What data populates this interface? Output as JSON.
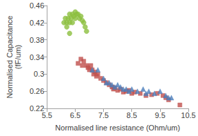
{
  "chart_data": {
    "type": "scatter",
    "x_label": "Normalised line resistance (Ohm/um)",
    "y_label": "Normalised Capacitance (fF/um)",
    "xlim": [
      5.5,
      10.5
    ],
    "xticks": [
      5.5,
      6.5,
      7.5,
      8.5,
      9.5,
      10.5
    ],
    "ylim": [
      0.22,
      0.46
    ],
    "yticks": [
      0.22,
      0.26,
      0.3,
      0.34,
      0.38,
      0.42,
      0.46
    ],
    "grid": false,
    "series": [
      {
        "color": "#8cbf3f",
        "marker": "circle",
        "x": [
          6.1,
          6.15,
          6.2,
          6.25,
          6.3,
          6.3,
          6.35,
          6.4,
          6.45,
          6.5,
          6.5,
          6.55,
          6.6,
          6.65,
          6.7,
          6.75,
          6.8,
          6.85,
          6.9,
          6.3,
          6.2,
          6.4
        ],
        "values": [
          0.42,
          0.43,
          0.42,
          0.43,
          0.44,
          0.42,
          0.43,
          0.44,
          0.435,
          0.445,
          0.43,
          0.44,
          0.44,
          0.43,
          0.435,
          0.425,
          0.42,
          0.41,
          0.4,
          0.395,
          0.41,
          0.42
        ]
      },
      {
        "color": "#c0504d",
        "marker": "square",
        "x": [
          6.6,
          6.7,
          6.75,
          6.8,
          6.9,
          6.95,
          7.0,
          7.05,
          7.1,
          7.15,
          7.2,
          7.25,
          7.3,
          7.4,
          7.5,
          7.6,
          7.7,
          7.8,
          7.85,
          7.9,
          8.0,
          8.1,
          8.2,
          8.3,
          8.4,
          8.5,
          8.6,
          8.8,
          9.0,
          9.2,
          9.4,
          9.6,
          9.7,
          9.8,
          10.2
        ],
        "values": [
          0.325,
          0.335,
          0.32,
          0.33,
          0.32,
          0.315,
          0.31,
          0.32,
          0.31,
          0.3,
          0.305,
          0.295,
          0.3,
          0.29,
          0.285,
          0.28,
          0.275,
          0.27,
          0.265,
          0.268,
          0.262,
          0.265,
          0.258,
          0.26,
          0.262,
          0.255,
          0.258,
          0.255,
          0.25,
          0.252,
          0.255,
          0.25,
          0.245,
          0.24,
          0.228
        ]
      },
      {
        "color": "#4a7ebb",
        "marker": "triangle",
        "x": [
          7.1,
          7.3,
          7.5,
          7.6,
          7.7,
          7.8,
          7.9,
          8.0,
          8.1,
          8.2,
          8.3,
          8.4,
          8.5,
          8.7,
          8.9,
          9.0,
          9.1,
          9.3,
          9.5,
          9.7,
          9.8,
          9.9
        ],
        "values": [
          0.31,
          0.31,
          0.29,
          0.28,
          0.28,
          0.275,
          0.27,
          0.275,
          0.27,
          0.265,
          0.265,
          0.26,
          0.265,
          0.26,
          0.265,
          0.255,
          0.26,
          0.255,
          0.26,
          0.25,
          0.245,
          0.245
        ]
      }
    ]
  }
}
